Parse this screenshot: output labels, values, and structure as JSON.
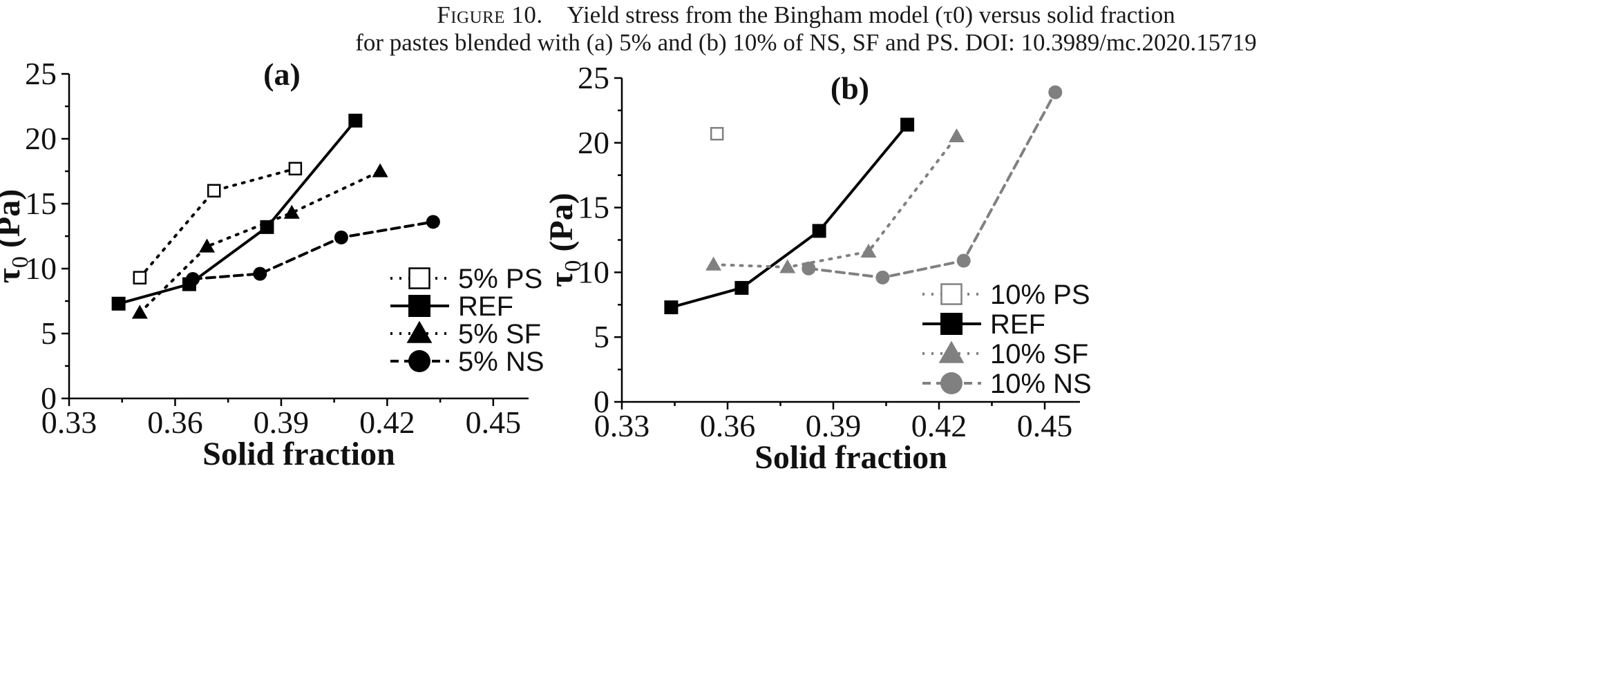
{
  "caption": {
    "figure_label": "Figure 10.",
    "line1_rest": "Yield stress from the Bingham model (τ0) versus solid fraction",
    "line2": "for pastes blended with (a) 5% and (b) 10% of NS, SF and PS. DOI: 10.3989/mc.2020.15719"
  },
  "chart_data": [
    {
      "type": "line",
      "panel_label": "(a)",
      "xlabel": "Solid fraction",
      "ylabel": "τ0 (Pa)",
      "xlim": [
        0.33,
        0.46
      ],
      "ylim": [
        0,
        25
      ],
      "xticks": [
        0.33,
        0.36,
        0.39,
        0.42,
        0.45
      ],
      "xtick_labels": [
        "0.33",
        "0.36",
        "0.39",
        "0.42",
        "0.45"
      ],
      "yticks": [
        0,
        5,
        10,
        15,
        20,
        25
      ],
      "ytick_labels": [
        "0",
        "5",
        "10",
        "15",
        "20",
        "25"
      ],
      "legend_position": "lower-right",
      "series": [
        {
          "name": "5% PS",
          "marker": "square-open",
          "line": "dotted",
          "color": "#000000",
          "x": [
            0.35,
            0.371,
            0.394
          ],
          "y": [
            9.3,
            16.0,
            17.7
          ]
        },
        {
          "name": "REF",
          "marker": "square",
          "line": "solid",
          "color": "#000000",
          "x": [
            0.344,
            0.364,
            0.386,
            0.411
          ],
          "y": [
            7.3,
            8.8,
            13.2,
            21.4
          ]
        },
        {
          "name": "5% SF",
          "marker": "triangle",
          "line": "dotted",
          "color": "#000000",
          "x": [
            0.35,
            0.369,
            0.393,
            0.418
          ],
          "y": [
            6.6,
            11.7,
            14.3,
            17.5
          ]
        },
        {
          "name": "5% NS",
          "marker": "circle",
          "line": "dashed",
          "color": "#000000",
          "x": [
            0.365,
            0.384,
            0.407,
            0.433
          ],
          "y": [
            9.2,
            9.6,
            12.4,
            13.6
          ]
        }
      ]
    },
    {
      "type": "line",
      "panel_label": "(b)",
      "xlabel": "Solid fraction",
      "ylabel": "τ0 (Pa)",
      "xlim": [
        0.33,
        0.46
      ],
      "ylim": [
        0,
        25
      ],
      "xticks": [
        0.33,
        0.36,
        0.39,
        0.42,
        0.45
      ],
      "xtick_labels": [
        "0.33",
        "0.36",
        "0.39",
        "0.42",
        "0.45"
      ],
      "yticks": [
        0,
        5,
        10,
        15,
        20,
        25
      ],
      "ytick_labels": [
        "0",
        "5",
        "10",
        "15",
        "20",
        "25"
      ],
      "legend_position": "lower-right",
      "series": [
        {
          "name": "10% PS",
          "marker": "square-open",
          "line": "dotted",
          "color": "#808080",
          "x": [
            0.357
          ],
          "y": [
            20.7
          ]
        },
        {
          "name": "REF",
          "marker": "square",
          "line": "solid",
          "color": "#000000",
          "x": [
            0.344,
            0.364,
            0.386,
            0.411
          ],
          "y": [
            7.3,
            8.8,
            13.2,
            21.4
          ]
        },
        {
          "name": "10% SF",
          "marker": "triangle",
          "line": "dotted",
          "color": "#808080",
          "x": [
            0.356,
            0.377,
            0.4,
            0.425
          ],
          "y": [
            10.6,
            10.4,
            11.6,
            20.5
          ]
        },
        {
          "name": "10% NS",
          "marker": "circle",
          "line": "dashed",
          "color": "#808080",
          "x": [
            0.383,
            0.404,
            0.427,
            0.453
          ],
          "y": [
            10.3,
            9.6,
            10.9,
            23.9
          ]
        }
      ]
    }
  ]
}
